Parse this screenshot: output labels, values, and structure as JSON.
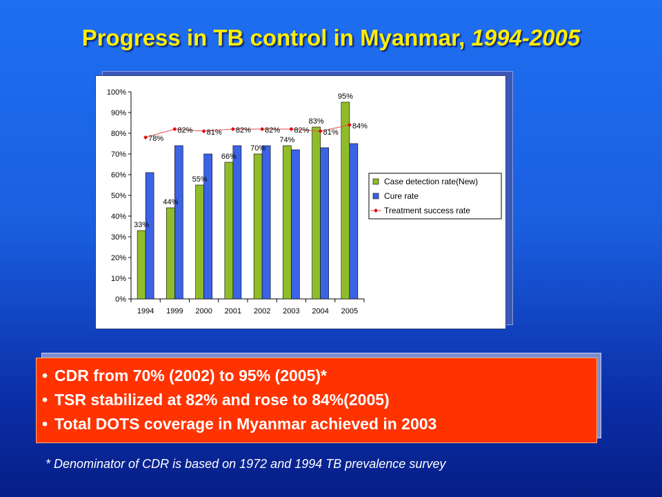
{
  "slide": {
    "title_main": "Progress in TB control in Myanmar, ",
    "title_years": "1994-2005",
    "bullets": [
      "CDR from 70% (2002) to 95% (2005)*",
      "TSR stabilized at 82% and rose to 84%(2005)",
      "Total DOTS coverage in Myanmar achieved in 2003"
    ],
    "bullet_glyph": "•",
    "footnote": "* Denominator of CDR is based on 1972 and 1994 TB prevalence survey"
  },
  "colors": {
    "case_detection": "#8fbd2a",
    "cure": "#3b63e6",
    "treatment_line": "#e84a4a",
    "treatment_marker": "#e00000"
  },
  "chart_data": {
    "type": "bar",
    "categories": [
      "1994",
      "1999",
      "2000",
      "2001",
      "2002",
      "2003",
      "2004",
      "2005"
    ],
    "ylim": [
      0,
      100
    ],
    "yticks": [
      0,
      10,
      20,
      30,
      40,
      50,
      60,
      70,
      80,
      90,
      100
    ],
    "ytick_labels": [
      "0%",
      "10%",
      "20%",
      "30%",
      "40%",
      "50%",
      "60%",
      "70%",
      "80%",
      "90%",
      "100%"
    ],
    "series": [
      {
        "name": "Case detection rate(New)",
        "kind": "bar",
        "values": [
          33,
          44,
          55,
          66,
          70,
          74,
          83,
          95
        ],
        "labels": [
          "33%",
          "44%",
          "55%",
          "66%",
          "70%",
          "74%",
          "83%",
          "95%"
        ]
      },
      {
        "name": "Cure rate",
        "kind": "bar",
        "values": [
          61,
          74,
          70,
          74,
          74,
          72,
          73,
          75
        ]
      },
      {
        "name": "Treatment success rate",
        "kind": "line",
        "values": [
          78,
          82,
          81,
          82,
          82,
          82,
          81,
          84
        ],
        "labels": [
          "78%",
          "82%",
          "81%",
          "82%",
          "82%",
          "82%",
          "81%",
          "84%"
        ]
      }
    ],
    "legend_position": "right",
    "grid": false
  }
}
